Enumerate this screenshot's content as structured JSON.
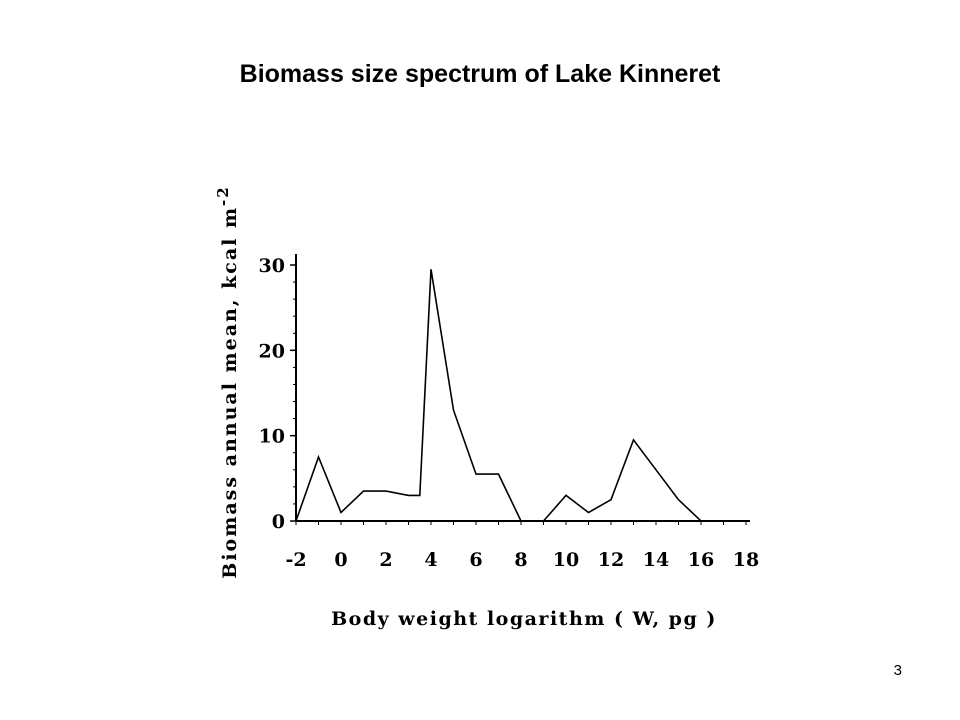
{
  "slide": {
    "title": "Biomass size spectrum of Lake Kinneret",
    "page_number": "3"
  },
  "chart_data": {
    "type": "line",
    "xlabel": "Body weight logarithm ( W, pg )",
    "ylabel_main": "Biomass annual mean, kcal m",
    "ylabel_superscript": "-2",
    "xlim": [
      -2,
      18
    ],
    "ylim": [
      0,
      31
    ],
    "xticks": [
      -2,
      0,
      2,
      4,
      6,
      8,
      10,
      12,
      14,
      16,
      18
    ],
    "yticks": [
      0,
      10,
      20,
      30
    ],
    "grid": false,
    "line_color": "#000000",
    "series": [
      {
        "x": [
          -2,
          -1,
          0,
          1,
          2,
          3,
          3.5,
          4,
          5,
          6,
          7,
          8,
          9,
          10,
          11,
          12,
          13,
          14,
          15,
          16,
          17,
          18
        ],
        "y": [
          0,
          7.5,
          1,
          3.5,
          3.5,
          3,
          3,
          29.5,
          13,
          5.5,
          5.5,
          0,
          0,
          3,
          1,
          2.5,
          9.5,
          6,
          2.5,
          0,
          0,
          0
        ]
      }
    ]
  }
}
